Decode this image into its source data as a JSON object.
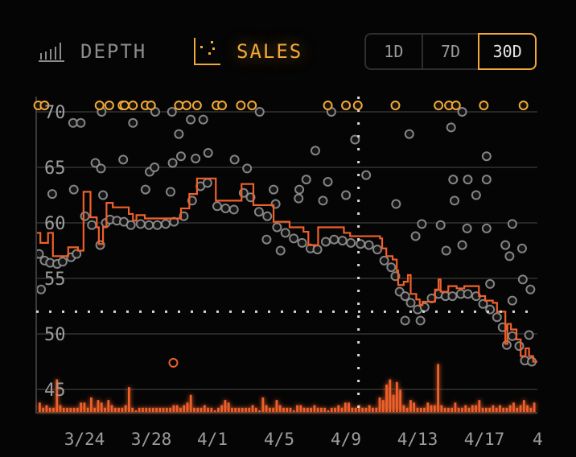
{
  "header": {
    "tabs": [
      {
        "label": "DEPTH",
        "icon": "bar-chart-icon",
        "active": false
      },
      {
        "label": "SALES",
        "icon": "scatter-chart-icon",
        "active": true
      }
    ],
    "ranges": [
      {
        "label": "1D",
        "active": false
      },
      {
        "label": "7D",
        "active": false
      },
      {
        "label": "30D",
        "active": true
      }
    ]
  },
  "colors": {
    "accent": "#f2a93b",
    "line": "#f0602a",
    "point": "#9a9a9a",
    "volume": "#f0602a",
    "grid": "#333333"
  },
  "chart_data": {
    "type": "scatter",
    "ylim": [
      43.5,
      71.5
    ],
    "xlim": [
      "3/21 00",
      "4/20 00"
    ],
    "yticks": [
      45,
      50,
      55,
      60,
      65,
      70
    ],
    "xticks": [
      "3/24",
      "3/28",
      "4/1",
      "4/5",
      "4/9",
      "4/13",
      "4/17",
      "4"
    ],
    "grid": true,
    "crosshair": {
      "x": "4/9 07",
      "y": 52.0
    },
    "step_line": [
      [
        "3/21 00",
        59.1
      ],
      [
        "3/21 06",
        58.2
      ],
      [
        "3/21 17",
        59.1
      ],
      [
        "3/22 00",
        57.0
      ],
      [
        "3/22 22",
        57.8
      ],
      [
        "3/23 12",
        57.5
      ],
      [
        "3/23 20",
        62.8
      ],
      [
        "3/24 06",
        60.5
      ],
      [
        "3/24 15",
        59.6
      ],
      [
        "3/24 18",
        58.1
      ],
      [
        "3/25 00",
        59.6
      ],
      [
        "3/25 05",
        61.8
      ],
      [
        "3/25 14",
        61.4
      ],
      [
        "3/26 13",
        60.8
      ],
      [
        "3/26 19",
        60.2
      ],
      [
        "3/27 00",
        60.7
      ],
      [
        "3/27 12",
        60.4
      ],
      [
        "3/29 16",
        61.3
      ],
      [
        "3/30 04",
        62.6
      ],
      [
        "3/30 15",
        64.0
      ],
      [
        "3/31 18",
        62.0
      ],
      [
        "4/2 07",
        63.5
      ],
      [
        "4/3 00",
        61.6
      ],
      [
        "4/4 05",
        60.1
      ],
      [
        "4/5 04",
        59.6
      ],
      [
        "4/6 00",
        59.2
      ],
      [
        "4/6 07",
        58.0
      ],
      [
        "4/6 21",
        59.6
      ],
      [
        "4/8 10",
        59.1
      ],
      [
        "4/8 19",
        58.8
      ],
      [
        "4/10 14",
        58.6
      ],
      [
        "4/10 17",
        57.7
      ],
      [
        "4/10 23",
        57.0
      ],
      [
        "4/11 08",
        56.7
      ],
      [
        "4/11 14",
        55.7
      ],
      [
        "4/11 16",
        54.4
      ],
      [
        "4/12 00",
        54.7
      ],
      [
        "4/12 06",
        55.3
      ],
      [
        "4/12 10",
        53.6
      ],
      [
        "4/12 18",
        53.1
      ],
      [
        "4/12 23",
        52.6
      ],
      [
        "4/13 03",
        52.9
      ],
      [
        "4/13 21",
        54.0
      ],
      [
        "4/14 02",
        54.9
      ],
      [
        "4/14 05",
        53.8
      ],
      [
        "4/14 16",
        54.3
      ],
      [
        "4/15 04",
        54.1
      ],
      [
        "4/15 15",
        54.3
      ],
      [
        "4/16 12",
        53.4
      ],
      [
        "4/16 21",
        53.0
      ],
      [
        "4/17 08",
        52.8
      ],
      [
        "4/17 14",
        52.0
      ],
      [
        "4/18 02",
        49.1
      ],
      [
        "4/18 05",
        50.9
      ],
      [
        "4/18 10",
        50.4
      ],
      [
        "4/18 18",
        49.5
      ],
      [
        "4/19 00",
        48.0
      ],
      [
        "4/19 07",
        48.7
      ],
      [
        "4/19 12",
        48.0
      ],
      [
        "4/19 18",
        47.5
      ],
      [
        "4/20 00",
        47.5
      ]
    ],
    "sales": [
      [
        "3/21 04",
        57.2
      ],
      [
        "3/21 12",
        56.6
      ],
      [
        "3/21 20",
        56.4
      ],
      [
        "3/22 06",
        56.3
      ],
      [
        "3/22 14",
        56.5
      ],
      [
        "3/23 02",
        56.9
      ],
      [
        "3/23 10",
        57.2
      ],
      [
        "3/23 22",
        60.6
      ],
      [
        "3/24 08",
        59.8
      ],
      [
        "3/24 20",
        58.0
      ],
      [
        "3/25 04",
        60.0
      ],
      [
        "3/25 10",
        60.3
      ],
      [
        "3/25 20",
        60.2
      ],
      [
        "3/26 06",
        60.1
      ],
      [
        "3/26 16",
        59.8
      ],
      [
        "3/27 06",
        59.9
      ],
      [
        "3/27 18",
        59.8
      ],
      [
        "3/28 06",
        59.8
      ],
      [
        "3/28 18",
        59.9
      ],
      [
        "3/29 06",
        60.1
      ],
      [
        "3/29 20",
        60.6
      ],
      [
        "3/30 08",
        62.0
      ],
      [
        "3/30 20",
        63.3
      ],
      [
        "3/31 06",
        63.6
      ],
      [
        "3/31 20",
        61.5
      ],
      [
        "4/1 08",
        61.3
      ],
      [
        "4/1 20",
        61.2
      ],
      [
        "4/2 10",
        62.7
      ],
      [
        "4/2 20",
        62.3
      ],
      [
        "4/3 08",
        61.0
      ],
      [
        "4/3 20",
        60.6
      ],
      [
        "4/4 10",
        59.6
      ],
      [
        "4/4 22",
        59.1
      ],
      [
        "4/5 10",
        58.6
      ],
      [
        "4/5 22",
        58.2
      ],
      [
        "4/6 10",
        57.7
      ],
      [
        "4/6 20",
        57.6
      ],
      [
        "4/7 08",
        58.3
      ],
      [
        "4/7 20",
        58.5
      ],
      [
        "4/8 08",
        58.4
      ],
      [
        "4/8 20",
        58.2
      ],
      [
        "4/9 10",
        58.1
      ],
      [
        "4/9 22",
        58.0
      ],
      [
        "4/10 10",
        57.6
      ],
      [
        "4/10 20",
        56.6
      ],
      [
        "4/11 06",
        56.0
      ],
      [
        "4/11 12",
        55.2
      ],
      [
        "4/11 18",
        53.8
      ],
      [
        "4/12 02",
        53.4
      ],
      [
        "4/12 10",
        52.8
      ],
      [
        "4/12 20",
        52.2
      ],
      [
        "4/13 06",
        52.4
      ],
      [
        "4/13 16",
        53.2
      ],
      [
        "4/14 02",
        53.6
      ],
      [
        "4/14 12",
        53.4
      ],
      [
        "4/14 22",
        53.4
      ],
      [
        "4/15 10",
        53.6
      ],
      [
        "4/15 20",
        53.6
      ],
      [
        "4/16 08",
        53.4
      ],
      [
        "4/16 18",
        52.7
      ],
      [
        "4/17 04",
        52.2
      ],
      [
        "4/17 14",
        51.5
      ],
      [
        "4/17 22",
        50.6
      ],
      [
        "4/18 04",
        49.0
      ],
      [
        "4/18 12",
        49.8
      ],
      [
        "4/18 22",
        48.9
      ],
      [
        "4/19 06",
        47.6
      ],
      [
        "4/19 16",
        47.5
      ],
      [
        "3/23 05",
        69.0
      ],
      [
        "3/23 16",
        69.0
      ],
      [
        "3/24 22",
        70.0
      ],
      [
        "3/26 19",
        69.0
      ],
      [
        "3/28 03",
        70.0
      ],
      [
        "3/29 03",
        70.0
      ],
      [
        "3/29 13",
        68.0
      ],
      [
        "3/30 06",
        69.3
      ],
      [
        "3/31 00",
        69.3
      ],
      [
        "4/3 09",
        70.0
      ],
      [
        "3/31 07",
        66.3
      ],
      [
        "4/1 21",
        65.7
      ],
      [
        "4/2 15",
        64.9
      ],
      [
        "3/29 16",
        66.0
      ],
      [
        "3/29 04",
        65.4
      ],
      [
        "3/30 13",
        65.8
      ],
      [
        "3/26 05",
        65.7
      ],
      [
        "3/24 13",
        65.4
      ],
      [
        "3/24 21",
        64.9
      ],
      [
        "3/27 19",
        64.6
      ],
      [
        "3/28 02",
        65.0
      ],
      [
        "3/21 23",
        62.6
      ],
      [
        "3/23 06",
        63.0
      ],
      [
        "3/27 13",
        63.0
      ],
      [
        "3/29 01",
        62.8
      ],
      [
        "3/25 00",
        62.5
      ],
      [
        "4/4 05",
        63.0
      ],
      [
        "4/4 08",
        61.7
      ],
      [
        "4/3 19",
        58.5
      ],
      [
        "4/4 15",
        57.5
      ],
      [
        "3/21 07",
        54.0
      ],
      [
        "4/7 16",
        70.0
      ],
      [
        "4/6 17",
        66.5
      ],
      [
        "4/9 02",
        67.5
      ],
      [
        "4/12 08",
        68.0
      ],
      [
        "4/14 20",
        68.6
      ],
      [
        "4/15 12",
        70.0
      ],
      [
        "4/16 23",
        66.0
      ],
      [
        "4/9 18",
        64.3
      ],
      [
        "4/6 04",
        63.9
      ],
      [
        "4/7 11",
        63.7
      ],
      [
        "4/5 18",
        63.0
      ],
      [
        "4/5 17",
        62.2
      ],
      [
        "4/7 04",
        62.0
      ],
      [
        "4/8 13",
        62.5
      ],
      [
        "4/11 13",
        61.7
      ],
      [
        "4/14 23",
        63.9
      ],
      [
        "4/15 20",
        63.9
      ],
      [
        "4/16 23",
        63.9
      ],
      [
        "4/15 01",
        62.0
      ],
      [
        "4/16 08",
        62.5
      ],
      [
        "4/13 02",
        59.9
      ],
      [
        "4/14 05",
        59.8
      ],
      [
        "4/15 19",
        59.5
      ],
      [
        "4/16 23",
        59.5
      ],
      [
        "4/18 12",
        59.9
      ],
      [
        "4/19 02",
        57.7
      ],
      [
        "4/19 03",
        54.9
      ],
      [
        "4/19 14",
        54.0
      ],
      [
        "4/19 12",
        49.9
      ],
      [
        "4/12 17",
        58.8
      ],
      [
        "4/14 13",
        57.5
      ],
      [
        "4/15 12",
        58.0
      ],
      [
        "4/18 02",
        58.0
      ],
      [
        "4/18 08",
        57.0
      ],
      [
        "4/17 04",
        54.5
      ],
      [
        "4/18 12",
        53.0
      ],
      [
        "4/13 00",
        51.2
      ],
      [
        "4/12 02",
        51.2
      ]
    ],
    "highlight_sale": [
      "3/29 05",
      47.4
    ],
    "above_range_sales": [
      "3/21 03",
      "3/21 12",
      "3/24 19",
      "3/25 09",
      "3/26 04",
      "3/26 07",
      "3/26 19",
      "3/27 13",
      "3/27 21",
      "3/29 13",
      "3/30 00",
      "3/30 15",
      "3/31 19",
      "4/1 03",
      "4/2 06",
      "4/2 22",
      "4/7 11",
      "4/8 13",
      "4/9 06",
      "4/11 12",
      "4/14 02",
      "4/14 17",
      "4/15 03",
      "4/16 19",
      "4/19 04"
    ],
    "volume": [
      3,
      1,
      2,
      1,
      1,
      12,
      2,
      1,
      1,
      1,
      1,
      1,
      3,
      3,
      1,
      5,
      1,
      4,
      3,
      1,
      4,
      2,
      1,
      1,
      1,
      2,
      9,
      1,
      0,
      1,
      1,
      1,
      1,
      1,
      1,
      1,
      1,
      1,
      1,
      2,
      2,
      1,
      2,
      3,
      6,
      1,
      1,
      1,
      2,
      1,
      1,
      0,
      1,
      2,
      4,
      3,
      1,
      1,
      1,
      1,
      1,
      1,
      2,
      1,
      0,
      5,
      2,
      1,
      1,
      4,
      2,
      1,
      1,
      1,
      0,
      2,
      2,
      1,
      1,
      1,
      2,
      1,
      1,
      1,
      0,
      1,
      1,
      2,
      1,
      3,
      3,
      1,
      1,
      2,
      1,
      1,
      2,
      1,
      1,
      5,
      4,
      10,
      12,
      6,
      11,
      8,
      2,
      1,
      4,
      3,
      1,
      1,
      1,
      3,
      2,
      2,
      18,
      2,
      1,
      1,
      1,
      3,
      1,
      1,
      2,
      1,
      2,
      2,
      4,
      1,
      1,
      1,
      2,
      1,
      2,
      1,
      1,
      2,
      3,
      1,
      2,
      4,
      2,
      1,
      3
    ]
  }
}
